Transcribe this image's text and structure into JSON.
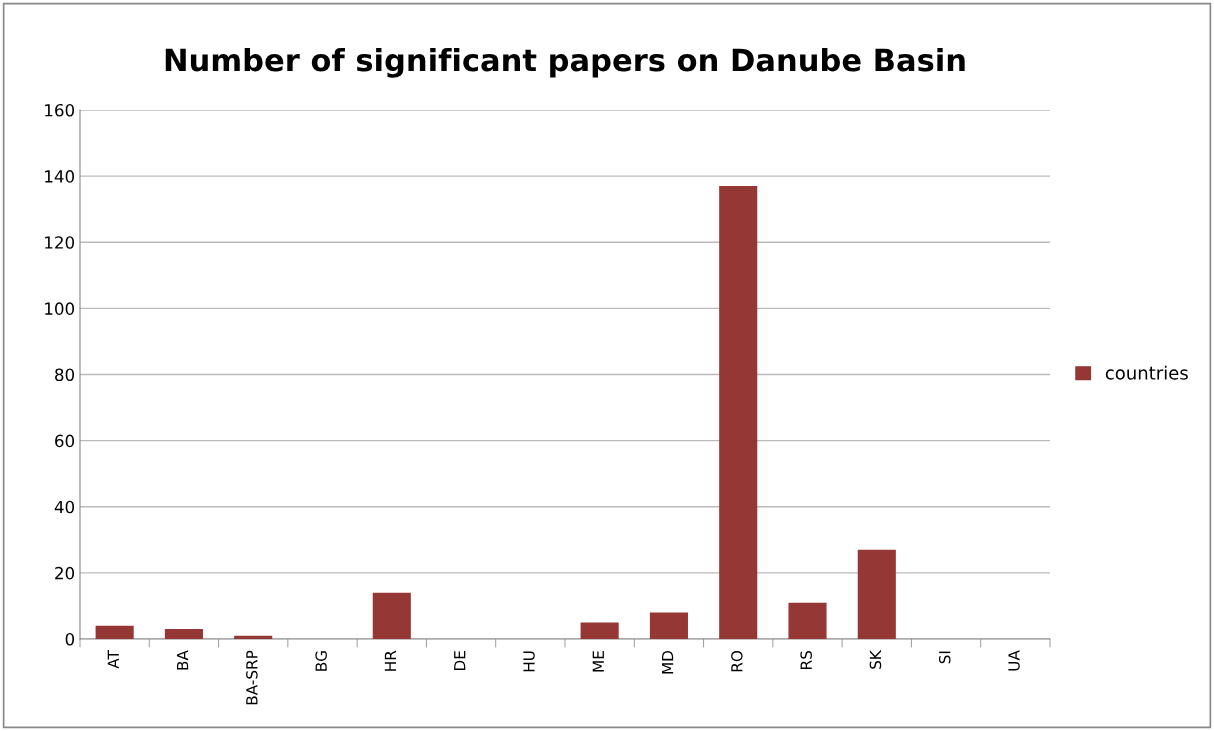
{
  "chart_data": {
    "type": "bar",
    "title": "Number of significant papers on Danube Basin",
    "categories": [
      "AT",
      "BA",
      "BA-SRP",
      "BG",
      "HR",
      "DE",
      "HU",
      "ME",
      "MD",
      "RO",
      "RS",
      "SK",
      "SI",
      "UA"
    ],
    "series": [
      {
        "name": "countries",
        "color": "#953735",
        "values": [
          4,
          3,
          1,
          0,
          14,
          0,
          0,
          5,
          8,
          137,
          11,
          27,
          0,
          0
        ]
      }
    ],
    "ylim": [
      0,
      160
    ],
    "yticks": [
      0,
      20,
      40,
      60,
      80,
      100,
      120,
      140,
      160
    ],
    "grid": "y",
    "legend": "right"
  }
}
